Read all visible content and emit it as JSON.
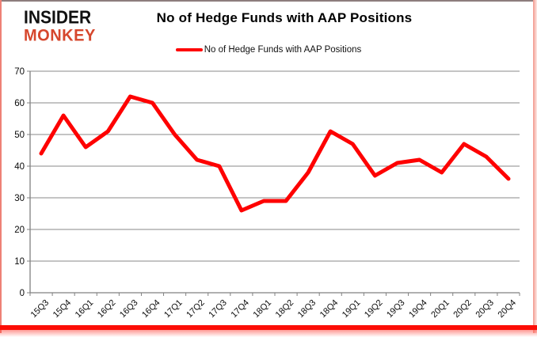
{
  "logo": {
    "line1": "INSIDER",
    "line2": "MONKEY",
    "color": "#d6472d"
  },
  "header": {
    "title": "No of Hedge Funds with AAP Positions"
  },
  "legend": {
    "label": "No of Hedge Funds with AAP Positions",
    "line_color": "#fe0000"
  },
  "chart_data": {
    "type": "line",
    "title": "No of Hedge Funds with AAP Positions",
    "categories": [
      "15Q3",
      "15Q4",
      "16Q1",
      "16Q2",
      "16Q3",
      "16Q4",
      "17Q1",
      "17Q2",
      "17Q3",
      "17Q4",
      "18Q1",
      "18Q2",
      "18Q3",
      "18Q4",
      "19Q1",
      "19Q2",
      "19Q3",
      "19Q4",
      "20Q1",
      "20Q2",
      "20Q3",
      "20Q4"
    ],
    "series": [
      {
        "name": "No of Hedge Funds with AAP Positions",
        "color": "#fe0000",
        "values": [
          44,
          56,
          46,
          51,
          62,
          60,
          50,
          42,
          40,
          26,
          29,
          29,
          38,
          51,
          47,
          37,
          41,
          42,
          38,
          47,
          43,
          36
        ]
      }
    ],
    "xlabel": "",
    "ylabel": "",
    "ylim": [
      0,
      70
    ],
    "yticks": [
      0,
      10,
      20,
      30,
      40,
      50,
      60,
      70
    ],
    "grid": true,
    "legend_position": "top-center",
    "axis_color": "#808080",
    "gridline_color": "#8a8a8a",
    "tick_label_color": "#0a0a0a"
  }
}
